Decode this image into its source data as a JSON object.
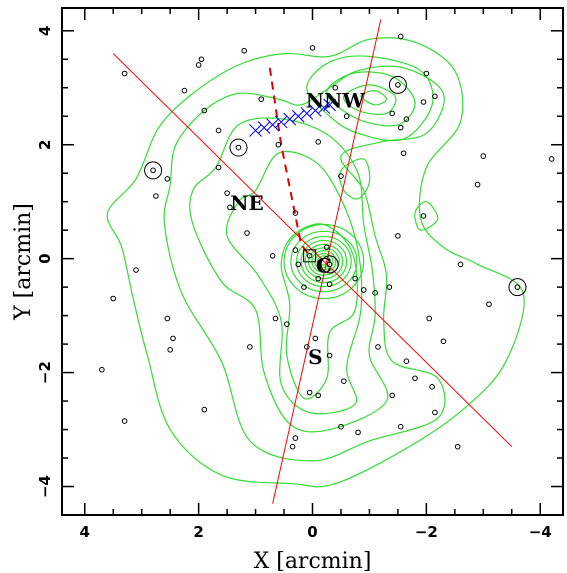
{
  "chart_data": {
    "type": "scatter",
    "title": "",
    "xlabel": "X [arcmin]",
    "ylabel": "Y [arcmin]",
    "xlim": [
      4.4,
      -4.4
    ],
    "ylim": [
      -4.5,
      4.4
    ],
    "x_ticks": [
      4,
      2,
      0,
      -2,
      -4
    ],
    "y_ticks": [
      4,
      2,
      0,
      -2,
      -4
    ],
    "x_tick_labels": [
      "4",
      "2",
      "0",
      "−2",
      "−4"
    ],
    "y_tick_labels": [
      "4",
      "2",
      "0",
      "−2",
      "−4"
    ],
    "grid": false,
    "colors": {
      "contours": "#33dd33",
      "lines": "#ff0000",
      "dashed": "#dd0000",
      "crosses": "#0000ff",
      "points": "#000000"
    },
    "annotations": [
      {
        "text": "NNW",
        "x": -0.4,
        "y": 2.75
      },
      {
        "text": "NE",
        "x": 1.15,
        "y": 0.95
      },
      {
        "text": "C",
        "x": -0.2,
        "y": -0.15
      },
      {
        "text": "S",
        "x": -0.05,
        "y": -1.75
      }
    ],
    "galaxies": [
      [
        3.3,
        3.25
      ],
      [
        1.95,
        3.5
      ],
      [
        2.0,
        3.4
      ],
      [
        2.25,
        2.95
      ],
      [
        1.2,
        3.65
      ],
      [
        0.0,
        3.7
      ],
      [
        -1.55,
        3.9
      ],
      [
        -2.0,
        3.25
      ],
      [
        -2.15,
        2.85
      ],
      [
        -0.4,
        3.0
      ],
      [
        -0.6,
        2.5
      ],
      [
        -1.4,
        2.55
      ],
      [
        -1.65,
        2.45
      ],
      [
        -1.95,
        2.75
      ],
      [
        -1.55,
        2.3
      ],
      [
        -1.6,
        1.85
      ],
      [
        0.9,
        2.8
      ],
      [
        1.65,
        2.25
      ],
      [
        1.9,
        2.6
      ],
      [
        1.65,
        1.6
      ],
      [
        0.6,
        2.0
      ],
      [
        2.55,
        1.4
      ],
      [
        2.75,
        1.1
      ],
      [
        1.5,
        1.15
      ],
      [
        1.45,
        0.9
      ],
      [
        0.3,
        0.8
      ],
      [
        -0.5,
        1.45
      ],
      [
        -0.1,
        2.05
      ],
      [
        -3.0,
        1.8
      ],
      [
        -2.9,
        1.3
      ],
      [
        -4.2,
        1.75
      ],
      [
        -1.95,
        0.75
      ],
      [
        -1.5,
        0.4
      ],
      [
        -2.6,
        -0.1
      ],
      [
        -3.1,
        -0.8
      ],
      [
        -2.05,
        -1.05
      ],
      [
        -2.3,
        -1.45
      ],
      [
        -0.9,
        -0.55
      ],
      [
        -1.35,
        -0.5
      ],
      [
        -1.1,
        -0.6
      ],
      [
        -0.75,
        -0.35
      ],
      [
        0.3,
        0.15
      ],
      [
        0.15,
        -0.5
      ],
      [
        -0.1,
        -0.35
      ],
      [
        -0.3,
        -0.45
      ],
      [
        0.25,
        -0.1
      ],
      [
        -0.25,
        0.2
      ],
      [
        0.7,
        0.05
      ],
      [
        1.15,
        0.45
      ],
      [
        3.1,
        -0.2
      ],
      [
        3.5,
        -0.7
      ],
      [
        2.55,
        -1.05
      ],
      [
        2.45,
        -1.4
      ],
      [
        2.5,
        -1.6
      ],
      [
        0.65,
        -1.05
      ],
      [
        0.45,
        -1.15
      ],
      [
        0.1,
        -1.55
      ],
      [
        -0.05,
        -1.4
      ],
      [
        -0.3,
        -1.7
      ],
      [
        1.1,
        -1.55
      ],
      [
        0.05,
        -2.35
      ],
      [
        -0.1,
        -2.4
      ],
      [
        -0.55,
        -2.15
      ],
      [
        -1.15,
        -1.55
      ],
      [
        -1.65,
        -1.8
      ],
      [
        -1.8,
        -2.1
      ],
      [
        -2.1,
        -2.25
      ],
      [
        -1.4,
        -2.4
      ],
      [
        -2.15,
        -2.7
      ],
      [
        -0.8,
        -3.05
      ],
      [
        -1.55,
        -2.95
      ],
      [
        -2.55,
        -3.3
      ],
      [
        0.3,
        -3.15
      ],
      [
        0.35,
        -3.3
      ],
      [
        1.9,
        -2.65
      ],
      [
        3.3,
        -2.85
      ],
      [
        3.7,
        -1.95
      ],
      [
        -0.5,
        -2.95
      ]
    ],
    "marked_galaxies": [
      [
        2.8,
        1.55
      ],
      [
        1.3,
        1.95
      ],
      [
        -1.5,
        3.05
      ],
      [
        -3.6,
        -0.5
      ],
      [
        -0.3,
        -0.1
      ]
    ],
    "boxed_galaxy": [
      0.05,
      0.05
    ],
    "cross_points": [
      [
        1.0,
        2.25
      ],
      [
        0.85,
        2.3
      ],
      [
        0.7,
        2.35
      ],
      [
        0.55,
        2.4
      ],
      [
        0.4,
        2.45
      ],
      [
        0.25,
        2.5
      ],
      [
        0.1,
        2.55
      ],
      [
        -0.05,
        2.6
      ],
      [
        -0.2,
        2.65
      ],
      [
        -0.3,
        2.7
      ]
    ],
    "solid_lines": [
      {
        "from": [
          3.5,
          3.6
        ],
        "to": [
          -3.5,
          -3.3
        ]
      },
      {
        "from": [
          0.7,
          -4.3
        ],
        "to": [
          -1.2,
          4.2
        ]
      }
    ],
    "dashed_line": [
      [
        0.75,
        3.35
      ],
      [
        0.55,
        2.0
      ],
      [
        0.35,
        1.0
      ],
      [
        0.2,
        0.25
      ],
      [
        0.05,
        0.05
      ]
    ],
    "contour_levels": [
      {
        "kind": "outer",
        "path": [
          [
            1.3,
            3.4
          ],
          [
            0.5,
            3.6
          ],
          [
            -0.3,
            3.55
          ],
          [
            -1.0,
            3.85
          ],
          [
            -1.8,
            3.8
          ],
          [
            -2.5,
            3.3
          ],
          [
            -2.6,
            2.4
          ],
          [
            -2.0,
            1.6
          ],
          [
            -1.9,
            0.7
          ],
          [
            -2.3,
            0.2
          ],
          [
            -2.9,
            -0.1
          ],
          [
            -3.7,
            -0.6
          ],
          [
            -3.4,
            -1.8
          ],
          [
            -2.7,
            -2.6
          ],
          [
            -1.7,
            -3.3
          ],
          [
            -0.4,
            -3.95
          ],
          [
            0.35,
            -3.95
          ],
          [
            1.6,
            -3.8
          ],
          [
            2.5,
            -3.0
          ],
          [
            2.9,
            -1.7
          ],
          [
            3.15,
            -0.7
          ],
          [
            3.35,
            0.2
          ],
          [
            3.6,
            0.8
          ],
          [
            3.1,
            1.4
          ],
          [
            2.7,
            2.3
          ],
          [
            2.1,
            2.9
          ]
        ]
      },
      {
        "kind": "mid",
        "path": [
          [
            2.4,
            2.0
          ],
          [
            1.9,
            2.6
          ],
          [
            1.3,
            2.9
          ],
          [
            0.6,
            2.8
          ],
          [
            0.2,
            2.7
          ],
          [
            -0.3,
            3.0
          ],
          [
            -0.8,
            3.3
          ],
          [
            -1.6,
            3.35
          ],
          [
            -2.3,
            2.9
          ],
          [
            -2.0,
            2.2
          ],
          [
            -1.2,
            2.05
          ],
          [
            -0.5,
            1.8
          ],
          [
            -0.9,
            1.2
          ],
          [
            -1.1,
            0.4
          ],
          [
            -1.3,
            -0.3
          ],
          [
            -1.25,
            -1.1
          ],
          [
            -1.4,
            -1.8
          ],
          [
            -2.2,
            -2.1
          ],
          [
            -2.2,
            -2.8
          ],
          [
            -1.0,
            -3.2
          ],
          [
            0.0,
            -3.55
          ],
          [
            1.1,
            -3.2
          ],
          [
            1.6,
            -1.8
          ],
          [
            2.3,
            -0.6
          ],
          [
            2.6,
            0.6
          ],
          [
            2.5,
            1.3
          ]
        ]
      },
      {
        "kind": "mid",
        "path": [
          [
            1.7,
            1.6
          ],
          [
            1.3,
            2.35
          ],
          [
            0.5,
            2.45
          ],
          [
            -0.3,
            2.15
          ],
          [
            -0.8,
            1.5
          ],
          [
            -0.9,
            0.6
          ],
          [
            -1.05,
            -0.2
          ],
          [
            -1.1,
            -1.0
          ],
          [
            -1.0,
            -1.7
          ],
          [
            -1.3,
            -2.5
          ],
          [
            -0.3,
            -3.0
          ],
          [
            0.4,
            -2.9
          ],
          [
            0.85,
            -2.0
          ],
          [
            1.0,
            -0.9
          ],
          [
            1.6,
            -0.4
          ],
          [
            2.1,
            0.6
          ],
          [
            2.1,
            1.2
          ]
        ]
      },
      {
        "kind": "mid",
        "path": [
          [
            1.0,
            1.2
          ],
          [
            0.6,
            1.85
          ],
          [
            -0.05,
            1.7
          ],
          [
            -0.5,
            1.05
          ],
          [
            -0.8,
            0.15
          ],
          [
            -0.85,
            -0.9
          ],
          [
            -0.6,
            -1.9
          ],
          [
            -0.75,
            -2.55
          ],
          [
            0.05,
            -2.7
          ],
          [
            0.55,
            -2.2
          ],
          [
            0.55,
            -1.1
          ],
          [
            0.95,
            -0.3
          ],
          [
            1.5,
            0.4
          ],
          [
            1.3,
            1.0
          ]
        ]
      },
      {
        "kind": "mid",
        "path": [
          [
            0.35,
            0.4
          ],
          [
            -0.2,
            0.6
          ],
          [
            -0.7,
            0.1
          ],
          [
            -0.75,
            -0.9
          ],
          [
            -0.3,
            -1.3
          ],
          [
            -0.25,
            -2.1
          ],
          [
            0.15,
            -2.45
          ],
          [
            0.45,
            -1.7
          ],
          [
            0.4,
            -0.8
          ],
          [
            0.55,
            -0.1
          ]
        ]
      },
      {
        "kind": "core",
        "cx": -0.2,
        "cy": -0.05,
        "rx": [
          0.7,
          0.58,
          0.48,
          0.4,
          0.33,
          0.27,
          0.21,
          0.16,
          0.11,
          0.07
        ],
        "ry": [
          0.65,
          0.53,
          0.44,
          0.37,
          0.3,
          0.24,
          0.19,
          0.14,
          0.1,
          0.06
        ]
      },
      {
        "kind": "nnw",
        "path": [
          [
            0.1,
            3.0
          ],
          [
            -0.3,
            3.45
          ],
          [
            -1.0,
            3.55
          ],
          [
            -1.9,
            3.3
          ],
          [
            -2.1,
            2.7
          ],
          [
            -1.6,
            2.1
          ],
          [
            -0.8,
            2.2
          ],
          [
            -0.3,
            2.5
          ]
        ]
      },
      {
        "kind": "nnw",
        "path": [
          [
            -0.25,
            2.9
          ],
          [
            -0.7,
            3.25
          ],
          [
            -1.4,
            3.2
          ],
          [
            -1.8,
            2.75
          ],
          [
            -1.5,
            2.35
          ],
          [
            -0.8,
            2.45
          ]
        ]
      },
      {
        "kind": "nnw",
        "path": [
          [
            -0.55,
            2.85
          ],
          [
            -1.0,
            3.05
          ],
          [
            -1.45,
            2.85
          ],
          [
            -1.3,
            2.55
          ],
          [
            -0.8,
            2.6
          ]
        ]
      },
      {
        "kind": "nnw",
        "path": [
          [
            -0.85,
            2.85
          ],
          [
            -1.1,
            2.95
          ],
          [
            -1.3,
            2.8
          ],
          [
            -1.1,
            2.7
          ]
        ]
      },
      {
        "kind": "island",
        "path": [
          [
            -0.5,
            1.55
          ],
          [
            -0.9,
            1.75
          ],
          [
            -1.0,
            1.35
          ],
          [
            -0.8,
            1.05
          ],
          [
            -0.55,
            1.2
          ]
        ]
      },
      {
        "kind": "island",
        "path": [
          [
            -2.0,
            1.0
          ],
          [
            -2.2,
            0.7
          ],
          [
            -1.9,
            0.5
          ],
          [
            -1.8,
            0.8
          ]
        ]
      }
    ]
  }
}
